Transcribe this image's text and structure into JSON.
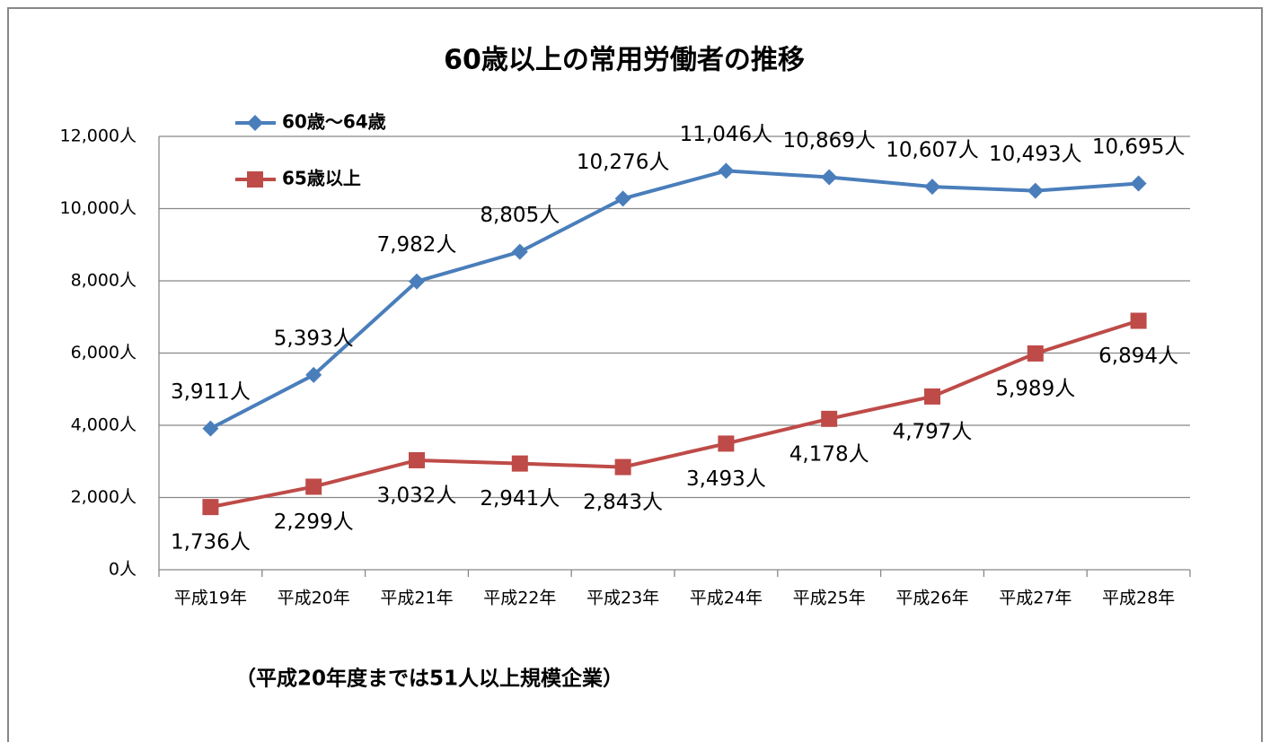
{
  "chart_data": {
    "type": "line",
    "title": "60歳以上の常用労働者の推移",
    "note": "（平成20年度までは51人以上規模企業）",
    "categories": [
      "平成19年",
      "平成20年",
      "平成21年",
      "平成22年",
      "平成23年",
      "平成24年",
      "平成25年",
      "平成26年",
      "平成27年",
      "平成28年"
    ],
    "series": [
      {
        "name": "60歳～64歳",
        "color": "#4a7ebb",
        "marker": "diamond",
        "values": [
          3911,
          5393,
          7982,
          8805,
          10276,
          11046,
          10869,
          10607,
          10493,
          10695
        ],
        "value_labels": [
          "3,911人",
          "5,393人",
          "7,982人",
          "8,805人",
          "10,276人",
          "11,046人",
          "10,869人",
          "10,607人",
          "10,493人",
          "10,695人"
        ]
      },
      {
        "name": "65歳以上",
        "color": "#be4b48",
        "marker": "square",
        "values": [
          1736,
          2299,
          3032,
          2941,
          2843,
          3493,
          4178,
          4797,
          5989,
          6894
        ],
        "value_labels": [
          "1,736人",
          "2,299人",
          "3,032人",
          "2,941人",
          "2,843人",
          "3,493人",
          "4,178人",
          "4,797人",
          "5,989人",
          "6,894人"
        ]
      }
    ],
    "ylim": [
      0,
      12000
    ],
    "yticks": [
      {
        "value": 0,
        "label": "0人"
      },
      {
        "value": 2000,
        "label": "2,000人"
      },
      {
        "value": 4000,
        "label": "4,000人"
      },
      {
        "value": 6000,
        "label": "6,000人"
      },
      {
        "value": 8000,
        "label": "8,000人"
      },
      {
        "value": 10000,
        "label": "10,000人"
      },
      {
        "value": 12000,
        "label": "12,000人"
      }
    ],
    "grid": true,
    "legend": "upper left"
  }
}
